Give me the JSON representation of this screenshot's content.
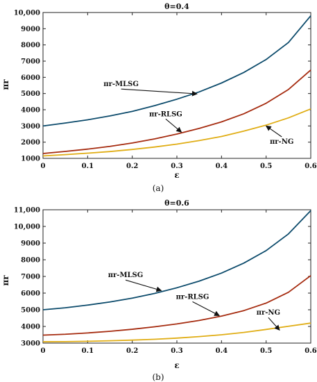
{
  "chart_data": [
    {
      "id": "a",
      "type": "line",
      "title": "θ=0.4",
      "xlabel": "ε",
      "ylabel": "πr",
      "panel_label": "(a)",
      "xlim": [
        0,
        0.6
      ],
      "ylim": [
        1000,
        10000
      ],
      "xticks": [
        0,
        0.1,
        0.2,
        0.3,
        0.4,
        0.5,
        0.6
      ],
      "xtick_labels": [
        "0",
        "0.1",
        "0.2",
        "0.3",
        "0.4",
        "0.5",
        "0.6"
      ],
      "yticks": [
        1000,
        2000,
        3000,
        4000,
        5000,
        6000,
        7000,
        8000,
        9000,
        10000
      ],
      "ytick_labels": [
        "1000",
        "2000",
        "3000",
        "4000",
        "5000",
        "6000",
        "7000",
        "8000",
        "9000",
        "10,000"
      ],
      "grid": false,
      "series": [
        {
          "name": "πr-MLSG",
          "color": "#0b4a6b",
          "x": [
            0,
            0.05,
            0.1,
            0.15,
            0.2,
            0.25,
            0.3,
            0.35,
            0.4,
            0.45,
            0.5,
            0.55,
            0.6
          ],
          "y": [
            3000,
            3180,
            3380,
            3620,
            3900,
            4250,
            4650,
            5100,
            5650,
            6300,
            7100,
            8150,
            9800
          ]
        },
        {
          "name": "πr-RLSG",
          "color": "#a52a0e",
          "x": [
            0,
            0.05,
            0.1,
            0.15,
            0.2,
            0.25,
            0.3,
            0.35,
            0.4,
            0.45,
            0.5,
            0.55,
            0.6
          ],
          "y": [
            1300,
            1430,
            1570,
            1740,
            1950,
            2200,
            2500,
            2850,
            3250,
            3750,
            4400,
            5250,
            6450
          ]
        },
        {
          "name": "πr-NG",
          "color": "#e0ad14",
          "x": [
            0,
            0.05,
            0.1,
            0.15,
            0.2,
            0.25,
            0.3,
            0.35,
            0.4,
            0.45,
            0.5,
            0.55,
            0.6
          ],
          "y": [
            1150,
            1230,
            1320,
            1420,
            1550,
            1700,
            1880,
            2100,
            2350,
            2680,
            3050,
            3500,
            4050
          ]
        }
      ],
      "annotations": [
        {
          "text": "πr-MLSG",
          "series": 0,
          "label_xy": [
            0.175,
            5450
          ],
          "arrow_to": [
            0.345,
            4980
          ]
        },
        {
          "text": "πr-RLSG",
          "series": 1,
          "label_xy": [
            0.275,
            3600
          ],
          "arrow_to": [
            0.31,
            2620
          ]
        },
        {
          "text": "πr-NG",
          "series": 2,
          "label_xy": [
            0.535,
            1900
          ],
          "arrow_to": [
            0.5,
            3000
          ]
        }
      ]
    },
    {
      "id": "b",
      "type": "line",
      "title": "θ=0.6",
      "xlabel": "ε",
      "ylabel": "πr",
      "panel_label": "(b)",
      "xlim": [
        0,
        0.6
      ],
      "ylim": [
        3000,
        11000
      ],
      "xticks": [
        0,
        0.1,
        0.2,
        0.3,
        0.4,
        0.5,
        0.6
      ],
      "xtick_labels": [
        "0",
        "0.1",
        "0.2",
        "0.3",
        "0.4",
        "0.5",
        "0.6"
      ],
      "yticks": [
        3000,
        4000,
        5000,
        6000,
        7000,
        8000,
        9000,
        10000,
        11000
      ],
      "ytick_labels": [
        "3000",
        "4000",
        "5000",
        "6000",
        "7000",
        "8000",
        "9000",
        "10,000",
        "11,000"
      ],
      "grid": false,
      "series": [
        {
          "name": "πr-MLSG",
          "color": "#0b4a6b",
          "x": [
            0,
            0.05,
            0.1,
            0.15,
            0.2,
            0.25,
            0.3,
            0.35,
            0.4,
            0.45,
            0.5,
            0.55,
            0.6
          ],
          "y": [
            5000,
            5120,
            5280,
            5470,
            5700,
            5980,
            6320,
            6720,
            7200,
            7800,
            8550,
            9550,
            10950
          ]
        },
        {
          "name": "πr-RLSG",
          "color": "#a52a0e",
          "x": [
            0,
            0.05,
            0.1,
            0.15,
            0.2,
            0.25,
            0.3,
            0.35,
            0.4,
            0.45,
            0.5,
            0.55,
            0.6
          ],
          "y": [
            3480,
            3530,
            3610,
            3710,
            3830,
            3980,
            4150,
            4360,
            4620,
            4950,
            5400,
            6050,
            7050
          ]
        },
        {
          "name": "πr-NG",
          "color": "#e0ad14",
          "x": [
            0,
            0.05,
            0.1,
            0.15,
            0.2,
            0.25,
            0.3,
            0.35,
            0.4,
            0.45,
            0.5,
            0.55,
            0.6
          ],
          "y": [
            3080,
            3090,
            3110,
            3140,
            3180,
            3230,
            3300,
            3390,
            3500,
            3640,
            3820,
            4010,
            4200
          ]
        }
      ],
      "annotations": [
        {
          "text": "πr-MLSG",
          "series": 0,
          "label_xy": [
            0.185,
            6950
          ],
          "arrow_to": [
            0.265,
            6150
          ]
        },
        {
          "text": "πr-RLSG",
          "series": 1,
          "label_xy": [
            0.335,
            5650
          ],
          "arrow_to": [
            0.395,
            4650
          ]
        },
        {
          "text": "πr-NG",
          "series": 2,
          "label_xy": [
            0.505,
            4700
          ],
          "arrow_to": [
            0.53,
            3780
          ]
        }
      ]
    }
  ]
}
